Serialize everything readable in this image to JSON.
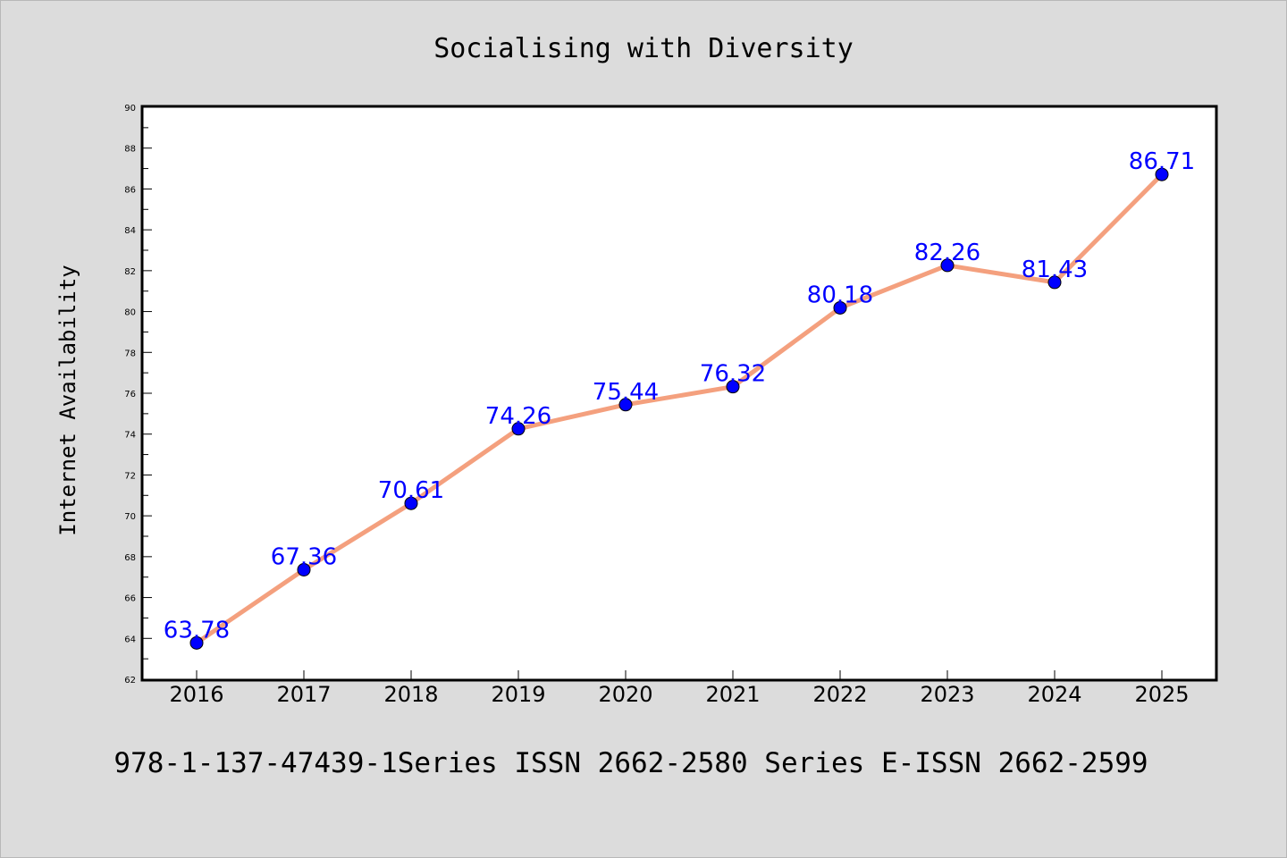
{
  "chart_data": {
    "type": "line",
    "title": "Socialising with Diversity",
    "xlabel": "",
    "ylabel": "Internet Availability",
    "categories": [
      "2016",
      "2017",
      "2018",
      "2019",
      "2020",
      "2021",
      "2022",
      "2023",
      "2024",
      "2025"
    ],
    "values": [
      63.78,
      67.36,
      70.61,
      74.26,
      75.44,
      76.32,
      80.18,
      82.26,
      81.43,
      86.71
    ],
    "data_labels": [
      "63.78",
      "67.36",
      "70.61",
      "74.26",
      "75.44",
      "76.32",
      "80.18",
      "82.26",
      "81.43",
      "86.71"
    ],
    "ylim": [
      62,
      90
    ],
    "yticks": [
      "62",
      "64",
      "66",
      "68",
      "70",
      "72",
      "74",
      "76",
      "78",
      "80",
      "82",
      "84",
      "86",
      "88",
      "90"
    ],
    "grid": false,
    "legend": "none",
    "line_color": "#f4a07e",
    "marker_color": "#0000ff",
    "label_color": "#0000ff"
  },
  "footer": {
    "text": "978-1-137-47439-1Series ISSN 2662-2580 Series E-ISSN 2662-2599"
  }
}
